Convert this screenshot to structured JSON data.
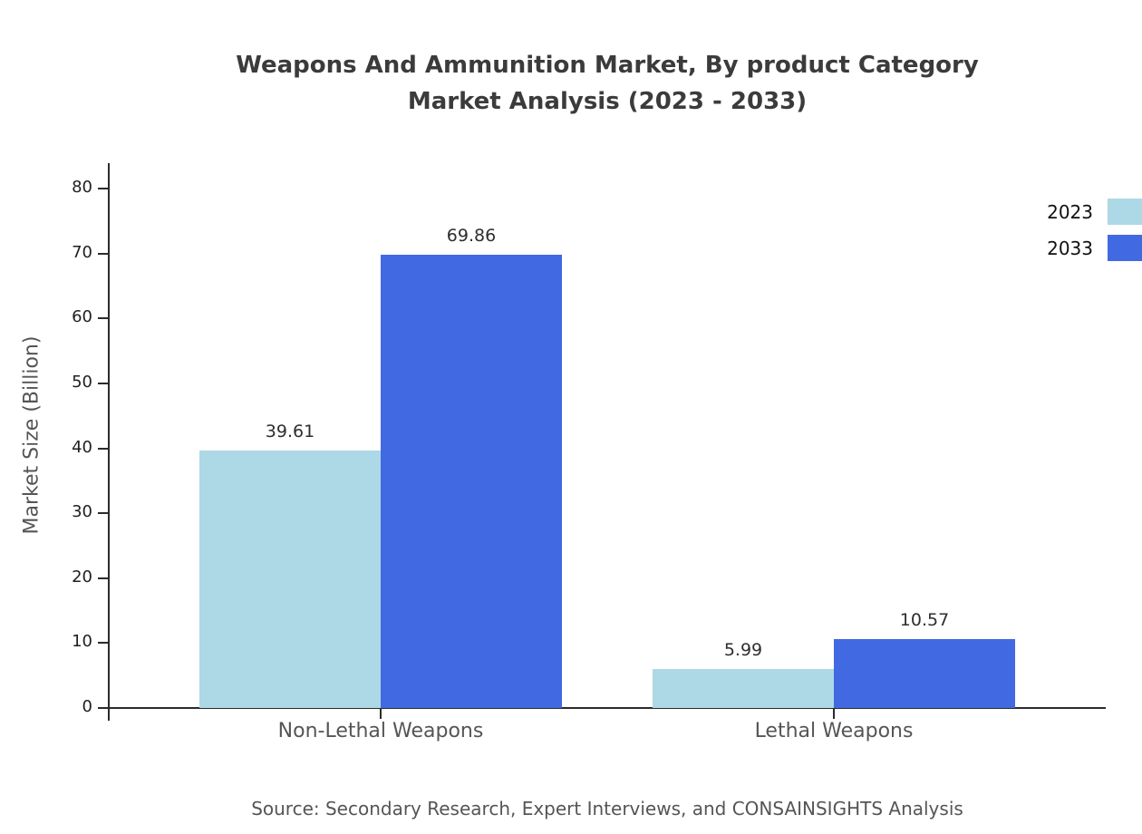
{
  "chart_data": {
    "type": "bar",
    "title_line1": "Weapons And Ammunition Market, By product Category",
    "title_line2": "Market Analysis (2023 - 2033)",
    "ylabel": "Market Size (Billion)",
    "categories": [
      "Non-Lethal Weapons",
      "Lethal Weapons"
    ],
    "series": [
      {
        "name": "2023",
        "color": "#add8e6",
        "values": [
          39.61,
          5.99
        ]
      },
      {
        "name": "2033",
        "color": "#4169e1",
        "values": [
          69.86,
          10.57
        ]
      }
    ],
    "ylim": [
      0,
      80
    ],
    "yticks": [
      0,
      10,
      20,
      30,
      40,
      50,
      60,
      70,
      80
    ],
    "grid": false,
    "legend_position": "top-right",
    "value_labels": [
      "39.61",
      "69.86",
      "5.99",
      "10.57"
    ]
  },
  "source_note": "Source: Secondary Research, Expert Interviews, and CONSAINSIGHTS Analysis"
}
